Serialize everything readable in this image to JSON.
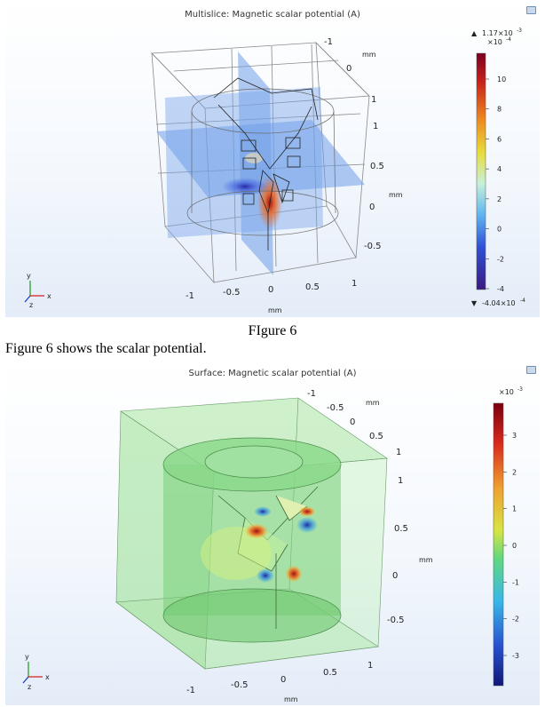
{
  "figure1": {
    "title": "Multislice: Magnetic scalar potential (A)",
    "axis_unit": "mm",
    "x_ticks": [
      "-1",
      "-0.5",
      "0",
      "0.5",
      "1"
    ],
    "y_ticks": [
      "-0.5",
      "0",
      "0.5",
      "1"
    ],
    "z_ticks": [
      "-1",
      "0",
      "1"
    ],
    "colorbar": {
      "max_label": "1.17×10",
      "max_exp": "-3",
      "scale_label": "×10",
      "scale_exp": "-4",
      "ticks": [
        "10",
        "8",
        "6",
        "4",
        "2",
        "0",
        "-2",
        "-4"
      ],
      "min_label": "-4.04×10",
      "min_exp": "-4",
      "max_marker": "▲",
      "min_marker": "▼"
    },
    "axes_labels": {
      "x": "x",
      "y": "y",
      "z": "z"
    }
  },
  "caption": "FIgure 6",
  "body_text": "Figure 6 shows the scalar potential.",
  "figure2": {
    "title": "Surface: Magnetic scalar potential (A)",
    "axis_unit": "mm",
    "x_ticks": [
      "-1",
      "-0.5",
      "0",
      "0.5",
      "1"
    ],
    "y_ticks": [
      "-0.5",
      "0",
      "0.5",
      "1"
    ],
    "z_ticks": [
      "-1",
      "-0.5",
      "0",
      "0.5",
      "1"
    ],
    "colorbar": {
      "scale_label": "×10",
      "scale_exp": "-3",
      "ticks": [
        "3",
        "2",
        "1",
        "0",
        "-1",
        "-2",
        "-3"
      ]
    },
    "axes_labels": {
      "x": "x",
      "y": "y",
      "z": "z"
    }
  },
  "colors": {
    "slice_blue": "#6f9fe8",
    "surface_green": "#8fe08f",
    "hot": "#c01818",
    "cold": "#2838c8"
  }
}
